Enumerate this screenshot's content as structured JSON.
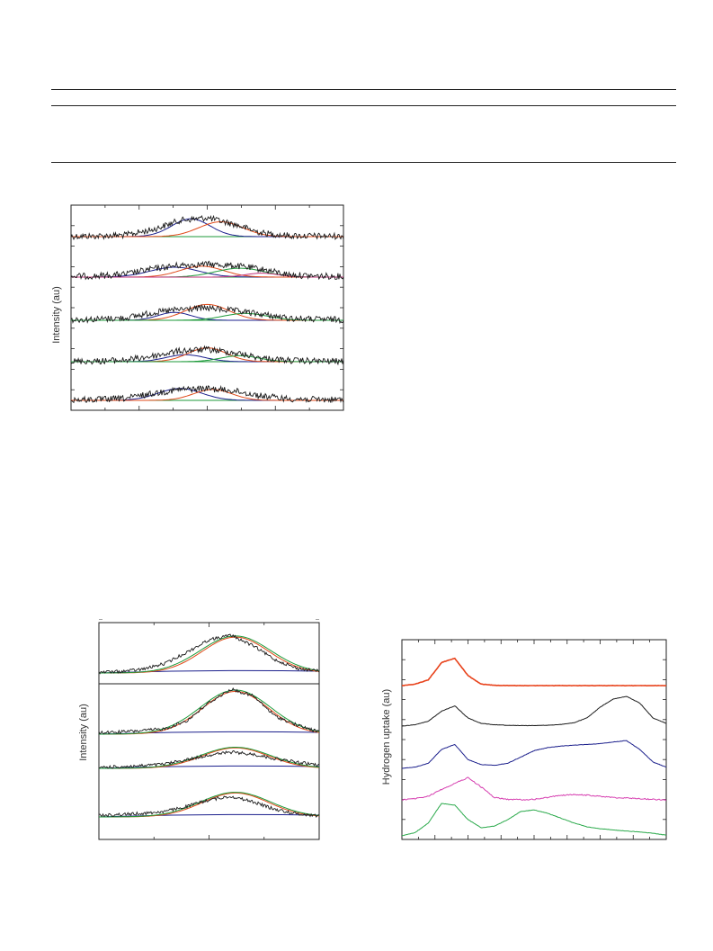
{
  "chart_data": [
    {
      "type": "line",
      "title": "",
      "xlabel": "",
      "ylabel": "Intensity (au)",
      "stacked_offset": true,
      "grid": false,
      "colors": {
        "raw": "#1a1a1a",
        "fit_a": "#1b1f8c",
        "fit_b": "#e04a1a",
        "fit_c": "#1e9a3a",
        "fit_d": "#c0307a"
      },
      "x": [
        0,
        0.1,
        0.2,
        0.3,
        0.4,
        0.5,
        0.6,
        0.7,
        0.8,
        0.9,
        1.0
      ],
      "series": [
        {
          "values": [
            0.02,
            0.03,
            0.08,
            0.35,
            0.82,
            0.95,
            0.62,
            0.18,
            0.05,
            0.03,
            0.02
          ]
        },
        {
          "values": [
            0.04,
            0.06,
            0.15,
            0.42,
            0.6,
            0.65,
            0.58,
            0.4,
            0.12,
            0.05,
            0.04
          ]
        },
        {
          "values": [
            0.03,
            0.06,
            0.12,
            0.38,
            0.55,
            0.62,
            0.48,
            0.3,
            0.1,
            0.05,
            0.03
          ]
        },
        {
          "values": [
            0.02,
            0.03,
            0.08,
            0.28,
            0.55,
            0.62,
            0.45,
            0.18,
            0.06,
            0.03,
            0.02
          ]
        },
        {
          "values": [
            0.03,
            0.04,
            0.1,
            0.35,
            0.55,
            0.6,
            0.48,
            0.22,
            0.08,
            0.04,
            0.03
          ]
        }
      ]
    },
    {
      "type": "line",
      "title": "",
      "xlabel": "",
      "ylabel": "Intensity (au)",
      "stacked_offset": true,
      "grid": false,
      "colors": {
        "raw": "#1a1a1a",
        "fit": "#1e9a3a",
        "peak": "#e04a1a",
        "background": "#1b1f8c"
      },
      "x": [
        0,
        0.1,
        0.2,
        0.3,
        0.4,
        0.5,
        0.6,
        0.7,
        0.8,
        0.9,
        1.0
      ],
      "series": [
        {
          "values": [
            0.02,
            0.04,
            0.1,
            0.25,
            0.55,
            0.88,
            1.0,
            0.72,
            0.35,
            0.12,
            0.05
          ]
        },
        {
          "values": [
            0.03,
            0.05,
            0.08,
            0.12,
            0.3,
            0.7,
            1.0,
            0.85,
            0.4,
            0.2,
            0.05
          ]
        },
        {
          "values": [
            0.05,
            0.08,
            0.12,
            0.2,
            0.4,
            0.62,
            0.75,
            0.65,
            0.45,
            0.28,
            0.15
          ]
        },
        {
          "values": [
            0.06,
            0.1,
            0.14,
            0.22,
            0.42,
            0.68,
            0.82,
            0.6,
            0.3,
            0.12,
            0.05
          ]
        }
      ]
    },
    {
      "type": "line",
      "title": "",
      "xlabel": "",
      "ylabel": "Hydrogen uptake (au)",
      "stacked_offset": true,
      "grid": false,
      "x": [
        0,
        0.05,
        0.1,
        0.15,
        0.2,
        0.25,
        0.3,
        0.35,
        0.4,
        0.45,
        0.5,
        0.55,
        0.6,
        0.65,
        0.7,
        0.75,
        0.8,
        0.85,
        0.9,
        0.95,
        1.0
      ],
      "series": [
        {
          "color": "#e8431c",
          "values": [
            0.0,
            0.05,
            0.2,
            0.8,
            0.95,
            0.35,
            0.05,
            0.01,
            0.0,
            0.0,
            0.0,
            0.0,
            0.0,
            0.0,
            0.0,
            0.0,
            0.0,
            0.0,
            0.0,
            0.0,
            0.0
          ]
        },
        {
          "color": "#1a1a1a",
          "values": [
            0.0,
            0.05,
            0.18,
            0.55,
            0.75,
            0.3,
            0.1,
            0.05,
            0.03,
            0.02,
            0.02,
            0.03,
            0.06,
            0.12,
            0.3,
            0.7,
            1.0,
            1.1,
            0.85,
            0.3,
            0.1
          ]
        },
        {
          "color": "#1b1f8c",
          "values": [
            0.0,
            0.05,
            0.2,
            0.75,
            0.95,
            0.35,
            0.15,
            0.12,
            0.2,
            0.45,
            0.7,
            0.82,
            0.88,
            0.92,
            0.95,
            0.98,
            1.05,
            1.1,
            0.75,
            0.25,
            0.05
          ]
        },
        {
          "color": "#d63fb0",
          "values": [
            0.0,
            0.05,
            0.15,
            0.45,
            0.7,
            0.95,
            0.55,
            0.1,
            0.02,
            0.01,
            0.02,
            0.1,
            0.2,
            0.22,
            0.2,
            0.15,
            0.1,
            0.08,
            0.05,
            0.02,
            0.0
          ]
        },
        {
          "color": "#29a94a",
          "values": [
            0.0,
            0.1,
            0.4,
            1.0,
            0.95,
            0.5,
            0.25,
            0.3,
            0.5,
            0.75,
            0.8,
            0.7,
            0.55,
            0.4,
            0.28,
            0.22,
            0.18,
            0.15,
            0.12,
            0.08,
            0.02
          ]
        }
      ]
    }
  ]
}
